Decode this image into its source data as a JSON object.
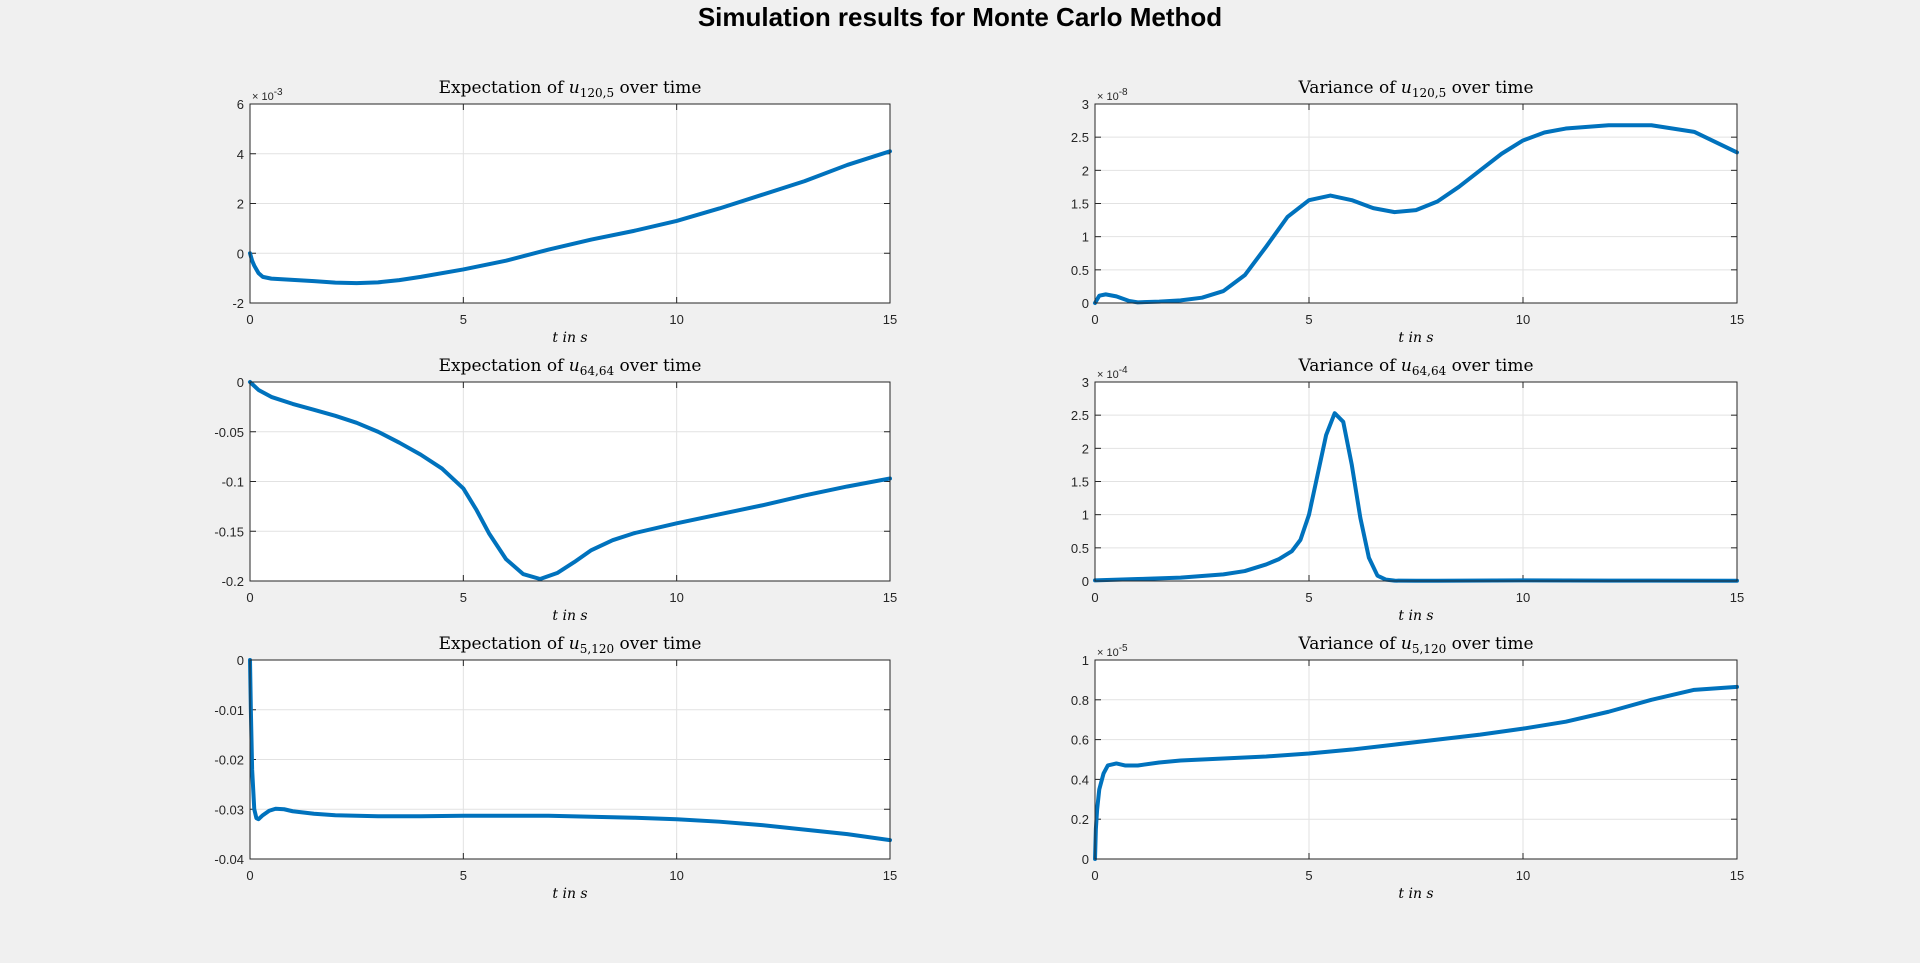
{
  "figure": {
    "title": "Simulation results for Monte Carlo Method"
  },
  "colors": {
    "line": "#0072bd",
    "grid": "#e2e2e2",
    "axes_bg": "#ffffff",
    "figure_bg": "#f0f0f0",
    "axis": "#262626"
  },
  "chart_data": [
    {
      "type": "line",
      "title": {
        "prefix": "Expectation of ",
        "var": "u",
        "sub": "120,5",
        "suffix": " over time"
      },
      "xlabel": "t in s",
      "xlim": [
        0,
        15
      ],
      "ylim": [
        -0.002,
        0.006
      ],
      "xticks": [
        0,
        5,
        10,
        15
      ],
      "xtick_labels": [
        "0",
        "5",
        "10",
        "15"
      ],
      "yticks": [
        -0.002,
        0,
        0.002,
        0.004,
        0.006
      ],
      "ytick_labels": [
        "-2",
        "0",
        "2",
        "4",
        "6"
      ],
      "exponent": "× 10",
      "exponent_power": "-3",
      "grid": true,
      "series": [
        {
          "x": [
            0,
            0.05,
            0.1,
            0.2,
            0.3,
            0.5,
            0.8,
            1,
            1.5,
            2,
            2.5,
            3,
            3.5,
            4,
            5,
            6,
            7,
            8,
            9,
            10,
            11,
            12,
            13,
            14,
            15
          ],
          "y": [
            0,
            -0.0003,
            -0.0005,
            -0.0008,
            -0.00095,
            -0.00102,
            -0.00105,
            -0.00107,
            -0.00112,
            -0.00118,
            -0.0012,
            -0.00117,
            -0.00108,
            -0.00095,
            -0.00065,
            -0.0003,
            0.00015,
            0.00055,
            0.0009,
            0.0013,
            0.0018,
            0.00235,
            0.0029,
            0.00355,
            0.0041
          ]
        }
      ]
    },
    {
      "type": "line",
      "title": {
        "prefix": "Variance of ",
        "var": "u",
        "sub": "120,5",
        "suffix": " over time"
      },
      "xlabel": "t in s",
      "xlim": [
        0,
        15
      ],
      "ylim": [
        0,
        3e-08
      ],
      "xticks": [
        0,
        5,
        10,
        15
      ],
      "xtick_labels": [
        "0",
        "5",
        "10",
        "15"
      ],
      "yticks": [
        0,
        5e-09,
        1e-08,
        1.5e-08,
        2e-08,
        2.5e-08,
        3e-08
      ],
      "ytick_labels": [
        "0",
        "0.5",
        "1",
        "1.5",
        "2",
        "2.5",
        "3"
      ],
      "exponent": "× 10",
      "exponent_power": "-8",
      "grid": true,
      "series": [
        {
          "x": [
            0,
            0.1,
            0.25,
            0.5,
            0.8,
            1,
            1.5,
            2,
            2.5,
            3,
            3.5,
            4,
            4.5,
            5,
            5.5,
            6,
            6.5,
            7,
            7.5,
            8,
            8.5,
            9,
            9.5,
            10,
            10.5,
            11,
            12,
            13,
            14,
            15
          ],
          "y": [
            0,
            1.1e-09,
            1.3e-09,
            1e-09,
            3e-10,
            1e-10,
            2e-10,
            4e-10,
            8e-10,
            1.8e-09,
            4.2e-09,
            8.5e-09,
            1.3e-08,
            1.55e-08,
            1.62e-08,
            1.55e-08,
            1.43e-08,
            1.37e-08,
            1.4e-08,
            1.53e-08,
            1.75e-08,
            2e-08,
            2.25e-08,
            2.45e-08,
            2.57e-08,
            2.63e-08,
            2.68e-08,
            2.68e-08,
            2.58e-08,
            2.27e-08
          ]
        }
      ]
    },
    {
      "type": "line",
      "title": {
        "prefix": "Expectation of ",
        "var": "u",
        "sub": "64,64",
        "suffix": " over time"
      },
      "xlabel": "t in s",
      "xlim": [
        0,
        15
      ],
      "ylim": [
        -0.2,
        0
      ],
      "xticks": [
        0,
        5,
        10,
        15
      ],
      "xtick_labels": [
        "0",
        "5",
        "10",
        "15"
      ],
      "yticks": [
        -0.2,
        -0.15,
        -0.1,
        -0.05,
        0
      ],
      "ytick_labels": [
        "-0.2",
        "-0.15",
        "-0.1",
        "-0.05",
        "0"
      ],
      "exponent": "",
      "exponent_power": "",
      "grid": true,
      "series": [
        {
          "x": [
            0,
            0.2,
            0.5,
            1,
            1.5,
            2,
            2.5,
            3,
            3.5,
            4,
            4.5,
            5,
            5.3,
            5.6,
            6,
            6.4,
            6.8,
            7.2,
            7.6,
            8,
            8.5,
            9,
            10,
            11,
            12,
            13,
            14,
            15
          ],
          "y": [
            0,
            -0.008,
            -0.015,
            -0.022,
            -0.028,
            -0.034,
            -0.041,
            -0.05,
            -0.061,
            -0.073,
            -0.087,
            -0.107,
            -0.128,
            -0.152,
            -0.178,
            -0.193,
            -0.198,
            -0.192,
            -0.181,
            -0.169,
            -0.159,
            -0.152,
            -0.142,
            -0.133,
            -0.124,
            -0.114,
            -0.105,
            -0.097
          ]
        }
      ]
    },
    {
      "type": "line",
      "title": {
        "prefix": "Variance of ",
        "var": "u",
        "sub": "64,64",
        "suffix": " over time"
      },
      "xlabel": "t in s",
      "xlim": [
        0,
        15
      ],
      "ylim": [
        0,
        0.0003
      ],
      "xticks": [
        0,
        5,
        10,
        15
      ],
      "xtick_labels": [
        "0",
        "5",
        "10",
        "15"
      ],
      "yticks": [
        0,
        5e-05,
        0.0001,
        0.00015,
        0.0002,
        0.00025,
        0.0003
      ],
      "ytick_labels": [
        "0",
        "0.5",
        "1",
        "1.5",
        "2",
        "2.5",
        "3"
      ],
      "exponent": "× 10",
      "exponent_power": "-4",
      "grid": true,
      "series": [
        {
          "x": [
            0,
            1,
            2,
            3,
            3.5,
            4,
            4.3,
            4.6,
            4.8,
            5,
            5.2,
            5.4,
            5.6,
            5.8,
            6,
            6.2,
            6.4,
            6.6,
            6.8,
            7,
            7.5,
            8,
            10,
            12,
            15
          ],
          "y": [
            1e-06,
            3e-06,
            5e-06,
            1e-05,
            1.5e-05,
            2.5e-05,
            3.3e-05,
            4.5e-05,
            6.2e-05,
            0.0001,
            0.00016,
            0.00022,
            0.000253,
            0.00024,
            0.000175,
            9.5e-05,
            3.5e-05,
            8e-06,
            2e-06,
            5e-07,
            3e-07,
            3e-07,
            1e-06,
            6e-07,
            4e-07
          ]
        }
      ]
    },
    {
      "type": "line",
      "title": {
        "prefix": "Expectation of ",
        "var": "u",
        "sub": "5,120",
        "suffix": " over time"
      },
      "xlabel": "t in s",
      "xlim": [
        0,
        15
      ],
      "ylim": [
        -0.04,
        0
      ],
      "xticks": [
        0,
        5,
        10,
        15
      ],
      "xtick_labels": [
        "0",
        "5",
        "10",
        "15"
      ],
      "yticks": [
        -0.04,
        -0.03,
        -0.02,
        -0.01,
        0
      ],
      "ytick_labels": [
        "-0.04",
        "-0.03",
        "-0.02",
        "-0.01",
        "0"
      ],
      "exponent": "",
      "exponent_power": "",
      "grid": true,
      "series": [
        {
          "x": [
            0,
            0.02,
            0.05,
            0.1,
            0.15,
            0.2,
            0.3,
            0.45,
            0.6,
            0.8,
            1,
            1.5,
            2,
            3,
            4,
            5,
            6,
            7,
            8,
            9,
            10,
            11,
            12,
            13,
            14,
            15
          ],
          "y": [
            0,
            -0.01,
            -0.022,
            -0.03,
            -0.0318,
            -0.032,
            -0.0312,
            -0.0303,
            -0.0299,
            -0.03,
            -0.0304,
            -0.0309,
            -0.0312,
            -0.0314,
            -0.0314,
            -0.0313,
            -0.0313,
            -0.0313,
            -0.0315,
            -0.0317,
            -0.032,
            -0.0325,
            -0.0332,
            -0.0341,
            -0.035,
            -0.0362
          ]
        }
      ]
    },
    {
      "type": "line",
      "title": {
        "prefix": "Variance of ",
        "var": "u",
        "sub": "5,120",
        "suffix": " over time"
      },
      "xlabel": "t in s",
      "xlim": [
        0,
        15
      ],
      "ylim": [
        0,
        1e-05
      ],
      "xticks": [
        0,
        5,
        10,
        15
      ],
      "xtick_labels": [
        "0",
        "5",
        "10",
        "15"
      ],
      "yticks": [
        0,
        2e-06,
        4e-06,
        6e-06,
        8e-06,
        1e-05
      ],
      "ytick_labels": [
        "0",
        "0.2",
        "0.4",
        "0.6",
        "0.8",
        "1"
      ],
      "exponent": "× 10",
      "exponent_power": "-5",
      "grid": true,
      "series": [
        {
          "x": [
            0,
            0.02,
            0.05,
            0.1,
            0.2,
            0.3,
            0.5,
            0.7,
            1,
            1.5,
            2,
            3,
            4,
            5,
            6,
            7,
            8,
            9,
            10,
            11,
            12,
            13,
            14,
            15
          ],
          "y": [
            0,
            1.5e-06,
            2.5e-06,
            3.5e-06,
            4.3e-06,
            4.7e-06,
            4.8e-06,
            4.7e-06,
            4.7e-06,
            4.85e-06,
            4.95e-06,
            5.05e-06,
            5.15e-06,
            5.3e-06,
            5.5e-06,
            5.75e-06,
            6e-06,
            6.25e-06,
            6.55e-06,
            6.9e-06,
            7.4e-06,
            8e-06,
            8.5e-06,
            8.65e-06
          ]
        }
      ]
    }
  ]
}
